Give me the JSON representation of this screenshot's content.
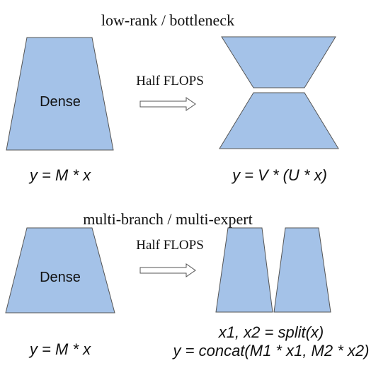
{
  "top": {
    "title": "low-rank / bottleneck",
    "dense_label": "Dense",
    "arrow_label": "Half FLOPS",
    "left_equation": "y = M * x",
    "right_equation": "y = V * (U * x)"
  },
  "bottom": {
    "title": "multi-branch / multi-expert",
    "dense_label": "Dense",
    "arrow_label": "Half FLOPS",
    "left_equation": "y = M * x",
    "right_equation_1": "x1, x2 = split(x)",
    "right_equation_2": "y = concat(M1 * x1, M2 * x2)"
  }
}
